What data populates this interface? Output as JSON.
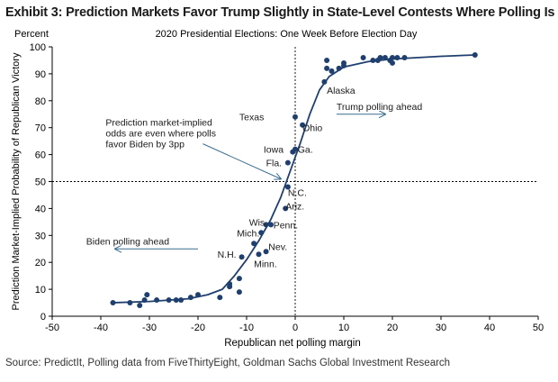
{
  "header": {
    "title": "Exhibit 3: Prediction Markets Favor Trump Slightly in State-Level Contests Where Polling Is Tied"
  },
  "footer": {
    "source": "Source: PredictIt, Polling data from FiveThirtyEight, Goldman Sachs Global Investment Research"
  },
  "chart_data": {
    "type": "scatter",
    "title": "2020 Presidential Elections: One Week Before Election Day",
    "y_unit_label": "Percent",
    "xlabel": "Republican net polling margin",
    "ylabel": "Prediction Market-Implied Probability of Republican Victory",
    "xlim": [
      -50,
      50
    ],
    "ylim": [
      0,
      100
    ],
    "x_ticks": [
      -50,
      -40,
      -30,
      -20,
      -10,
      0,
      10,
      20,
      30,
      40,
      50
    ],
    "y_ticks": [
      0,
      10,
      20,
      30,
      40,
      50,
      60,
      70,
      80,
      90,
      100
    ],
    "grid": false,
    "reference_lines": {
      "x": 0,
      "y": 50
    },
    "colors": {
      "series": "#1f3f6e",
      "arrow": "#3a6e8f",
      "text": "#1a1a1a"
    },
    "points": [
      {
        "x": -37.5,
        "y": 5
      },
      {
        "x": -34,
        "y": 5
      },
      {
        "x": -32,
        "y": 4
      },
      {
        "x": -31,
        "y": 6
      },
      {
        "x": -30.5,
        "y": 8
      },
      {
        "x": -28.5,
        "y": 6
      },
      {
        "x": -26,
        "y": 6
      },
      {
        "x": -24.5,
        "y": 6
      },
      {
        "x": -23.5,
        "y": 6
      },
      {
        "x": -21.5,
        "y": 7
      },
      {
        "x": -20,
        "y": 8
      },
      {
        "x": -15.5,
        "y": 7
      },
      {
        "x": -13.5,
        "y": 12
      },
      {
        "x": -13.5,
        "y": 11
      },
      {
        "x": -11.5,
        "y": 9
      },
      {
        "x": -11.5,
        "y": 14
      },
      {
        "x": -11,
        "y": 22
      },
      {
        "x": -8.5,
        "y": 27
      },
      {
        "x": -7.5,
        "y": 23
      },
      {
        "x": -7,
        "y": 31
      },
      {
        "x": -6,
        "y": 34
      },
      {
        "x": -6,
        "y": 24
      },
      {
        "x": -5,
        "y": 34
      },
      {
        "x": -2,
        "y": 40
      },
      {
        "x": -1.5,
        "y": 48
      },
      {
        "x": -1.5,
        "y": 57
      },
      {
        "x": -0.5,
        "y": 61
      },
      {
        "x": 0,
        "y": 62
      },
      {
        "x": 0,
        "y": 74
      },
      {
        "x": 1.5,
        "y": 71
      },
      {
        "x": 6,
        "y": 87
      },
      {
        "x": 6.5,
        "y": 95
      },
      {
        "x": 6.5,
        "y": 92
      },
      {
        "x": 7.5,
        "y": 91
      },
      {
        "x": 9,
        "y": 92
      },
      {
        "x": 10,
        "y": 93
      },
      {
        "x": 10,
        "y": 94
      },
      {
        "x": 14,
        "y": 96
      },
      {
        "x": 16,
        "y": 95
      },
      {
        "x": 17,
        "y": 95
      },
      {
        "x": 17.5,
        "y": 96
      },
      {
        "x": 18.5,
        "y": 96
      },
      {
        "x": 19.5,
        "y": 95
      },
      {
        "x": 20,
        "y": 94
      },
      {
        "x": 20,
        "y": 96
      },
      {
        "x": 21,
        "y": 96
      },
      {
        "x": 22.5,
        "y": 96
      },
      {
        "x": 37,
        "y": 97
      }
    ],
    "fit_curve": [
      {
        "x": -38,
        "y": 5
      },
      {
        "x": -30,
        "y": 5.5
      },
      {
        "x": -22,
        "y": 6.5
      },
      {
        "x": -18,
        "y": 8
      },
      {
        "x": -15,
        "y": 10
      },
      {
        "x": -12.5,
        "y": 15
      },
      {
        "x": -10,
        "y": 21
      },
      {
        "x": -7.5,
        "y": 28
      },
      {
        "x": -5,
        "y": 36
      },
      {
        "x": -3,
        "y": 44
      },
      {
        "x": -1,
        "y": 54
      },
      {
        "x": 1,
        "y": 64
      },
      {
        "x": 3,
        "y": 75
      },
      {
        "x": 5,
        "y": 84
      },
      {
        "x": 7,
        "y": 89
      },
      {
        "x": 10,
        "y": 92.5
      },
      {
        "x": 15,
        "y": 94.5
      },
      {
        "x": 20,
        "y": 95.5
      },
      {
        "x": 30,
        "y": 96.5
      },
      {
        "x": 37,
        "y": 97
      }
    ],
    "state_labels": [
      {
        "text": "Alaska",
        "x": 6.5,
        "y": 84
      },
      {
        "text": "Texas",
        "x": -11.5,
        "y": 74
      },
      {
        "text": "Ohio",
        "x": 1.5,
        "y": 70
      },
      {
        "text": "Iowa",
        "x": -6.5,
        "y": 62
      },
      {
        "text": "Ga.",
        "x": 0.5,
        "y": 62
      },
      {
        "text": "Fla.",
        "x": -6,
        "y": 57
      },
      {
        "text": "N.C.",
        "x": -1.5,
        "y": 46
      },
      {
        "text": "Ariz.",
        "x": -2,
        "y": 41
      },
      {
        "text": "Wis.",
        "x": -9.5,
        "y": 35
      },
      {
        "text": "Penn.",
        "x": -4.5,
        "y": 34
      },
      {
        "text": "Mich.",
        "x": -12,
        "y": 31
      },
      {
        "text": "Nev.",
        "x": -5.5,
        "y": 26
      },
      {
        "text": "N.H.",
        "x": -16,
        "y": 23
      },
      {
        "text": "Minn.",
        "x": -8.5,
        "y": 19.5
      }
    ],
    "annotations": [
      {
        "name": "trump-polling-ahead",
        "lines": [
          "Trump polling ahead"
        ],
        "x": 8.5,
        "y": 78,
        "arrow": {
          "from": [
            8.5,
            75
          ],
          "to": [
            18.5,
            75
          ]
        }
      },
      {
        "name": "biden-polling-ahead",
        "lines": [
          "Biden polling ahead"
        ],
        "x": -43,
        "y": 28,
        "arrow": {
          "from": [
            -20,
            25
          ],
          "to": [
            -37,
            25
          ]
        }
      },
      {
        "name": "prediction-market-note",
        "lines": [
          "Prediction market-implied",
          "odds are even where polls",
          "favor Biden by 3pp"
        ],
        "x": -39,
        "y": 72,
        "arrow": {
          "from": [
            -19,
            64
          ],
          "to": [
            -3,
            51
          ]
        }
      }
    ]
  }
}
